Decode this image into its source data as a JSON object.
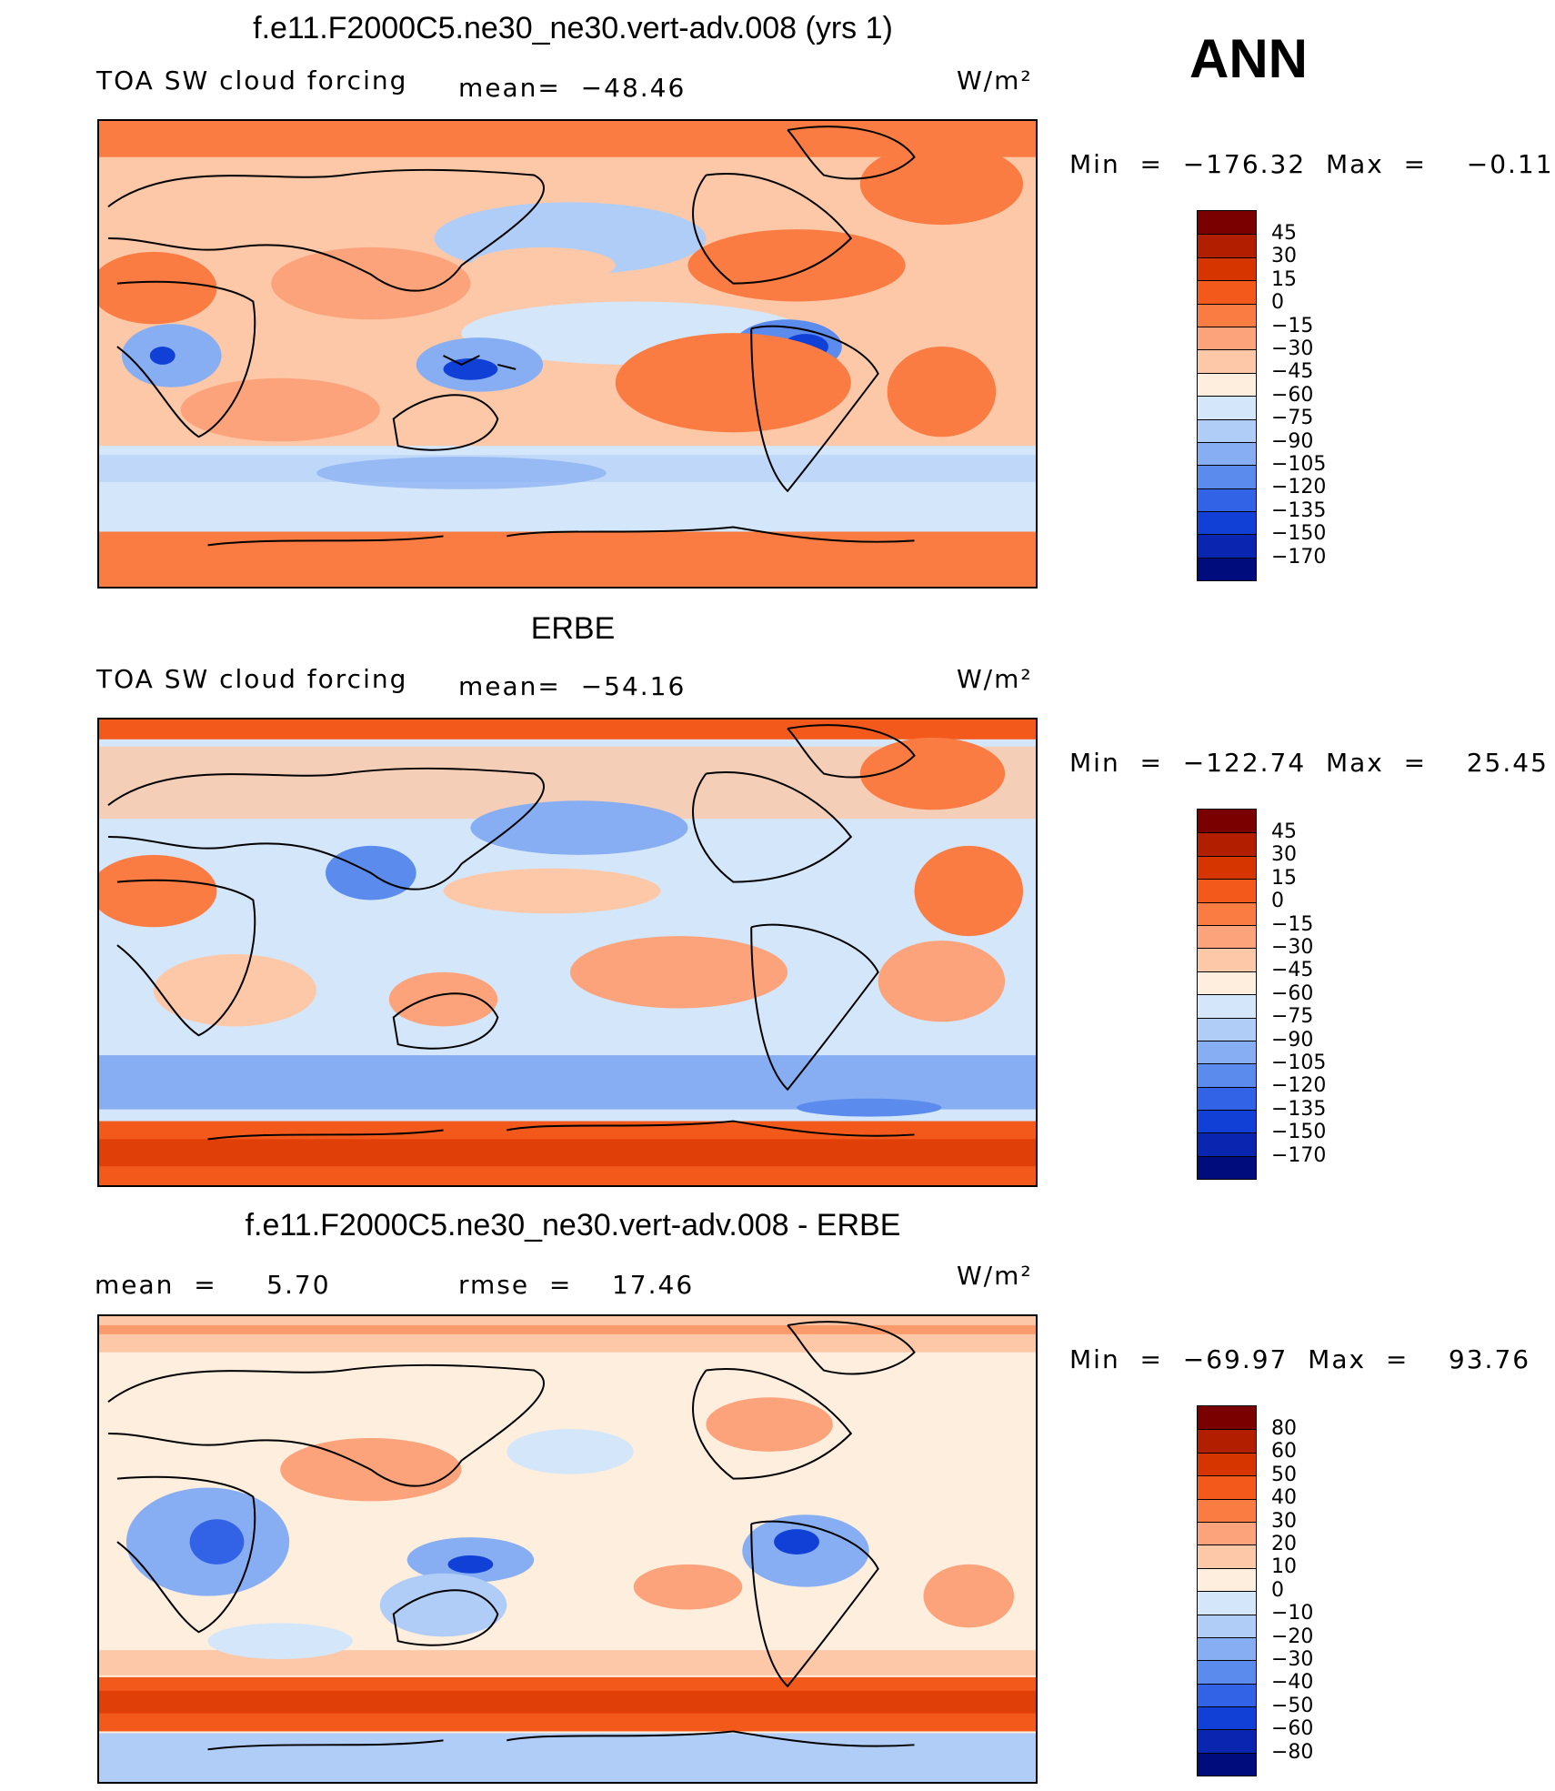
{
  "ann_label": "ANN",
  "panels": [
    {
      "title": "f.e11.F2000C5.ne30_ne30.vert-adv.008 (yrs 1)",
      "left_label": "TOA SW cloud forcing",
      "center_label": "mean=  −48.46",
      "units": "W/m²",
      "minmax": "Min  =  −176.32  Max  =    −0.11",
      "levels": [
        "45",
        "30",
        "15",
        "0",
        "−15",
        "−30",
        "−45",
        "−60",
        "−75",
        "−90",
        "−105",
        "−120",
        "−135",
        "−150",
        "−170"
      ],
      "colors": [
        "#7a0000",
        "#b21e00",
        "#d73500",
        "#f4591c",
        "#fa7c43",
        "#fca37c",
        "#fdc8a8",
        "#feeedd",
        "#d4e6fa",
        "#b0cdf7",
        "#87aef2",
        "#5b8ced",
        "#3262e6",
        "#1040d6",
        "#0a26b0",
        "#000b7c"
      ]
    },
    {
      "title": "ERBE",
      "left_label": "TOA SW cloud forcing",
      "center_label": "mean=  −54.16",
      "units": "W/m²",
      "minmax": "Min  =  −122.74  Max  =    25.45",
      "levels": [
        "45",
        "30",
        "15",
        "0",
        "−15",
        "−30",
        "−45",
        "−60",
        "−75",
        "−90",
        "−105",
        "−120",
        "−135",
        "−150",
        "−170"
      ],
      "colors": [
        "#7a0000",
        "#b21e00",
        "#d73500",
        "#f4591c",
        "#fa7c43",
        "#fca37c",
        "#fdc8a8",
        "#feeedd",
        "#d4e6fa",
        "#b0cdf7",
        "#87aef2",
        "#5b8ced",
        "#3262e6",
        "#1040d6",
        "#0a26b0",
        "#000b7c"
      ]
    },
    {
      "title": "f.e11.F2000C5.ne30_ne30.vert-adv.008 - ERBE",
      "left_label": "mean  =     5.70",
      "center_label": "rmse  =    17.46",
      "units": "W/m²",
      "minmax": "Min  =  −69.97  Max  =    93.76",
      "levels": [
        "80",
        "60",
        "50",
        "40",
        "30",
        "20",
        "10",
        "0",
        "−10",
        "−20",
        "−30",
        "−40",
        "−50",
        "−60",
        "−80"
      ],
      "colors": [
        "#7a0000",
        "#b21e00",
        "#d73500",
        "#f4591c",
        "#fa7c43",
        "#fca37c",
        "#fdc8a8",
        "#feeedd",
        "#d4e6fa",
        "#b0cdf7",
        "#87aef2",
        "#5b8ced",
        "#3262e6",
        "#1040d6",
        "#0a26b0",
        "#000b7c"
      ]
    }
  ]
}
